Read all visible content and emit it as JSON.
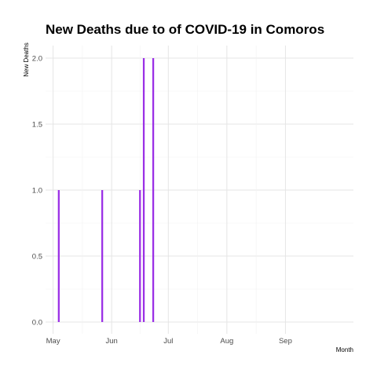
{
  "chart_data": {
    "type": "bar",
    "title": "New Deaths due to of COVID-19 in Comoros",
    "xlabel": "Month",
    "ylabel": "New Deaths",
    "x_ticks": [
      "May",
      "Jun",
      "Jul",
      "Aug",
      "Sep"
    ],
    "y_ticks": [
      "0.0",
      "0.5",
      "1.0",
      "1.5",
      "2.0"
    ],
    "xlim": [
      "2020-04-27",
      "2020-10-07"
    ],
    "ylim": [
      0,
      2
    ],
    "grid": true,
    "bar_color": "#9b30e6",
    "series": [
      {
        "x": [
          "2020-05-04",
          "2020-05-27",
          "2020-06-16",
          "2020-06-18",
          "2020-06-23"
        ],
        "values": [
          1,
          1,
          1,
          2,
          2
        ]
      }
    ]
  }
}
